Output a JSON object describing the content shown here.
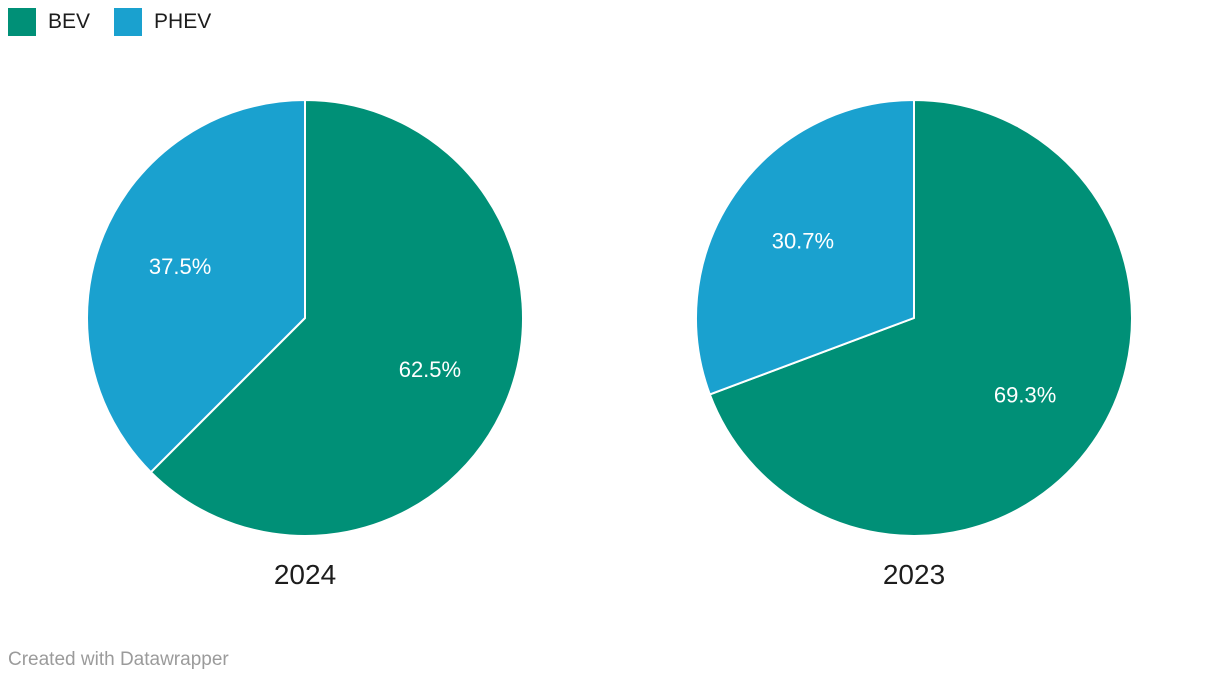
{
  "legend": {
    "items": [
      {
        "label": "BEV",
        "color": "#009077"
      },
      {
        "label": "PHEV",
        "color": "#1AA1CF"
      }
    ]
  },
  "footer": {
    "credit": "Created with Datawrapper"
  },
  "chart_data": {
    "type": "pie",
    "title": "",
    "legend_position": "top-left",
    "direction": "clockwise",
    "start_angle": 0,
    "label_color": "#ffffff",
    "slice_divider_color": "#ffffff",
    "colors": {
      "BEV": "#009077",
      "PHEV": "#1AA1CF"
    },
    "pies": [
      {
        "title": "2024",
        "categories": [
          "BEV",
          "PHEV"
        ],
        "values": [
          62.5,
          37.5
        ],
        "labels": [
          "62.5%",
          "37.5%"
        ]
      },
      {
        "title": "2023",
        "categories": [
          "BEV",
          "PHEV"
        ],
        "values": [
          69.3,
          30.7
        ],
        "labels": [
          "69.3%",
          "30.7%"
        ]
      }
    ]
  }
}
